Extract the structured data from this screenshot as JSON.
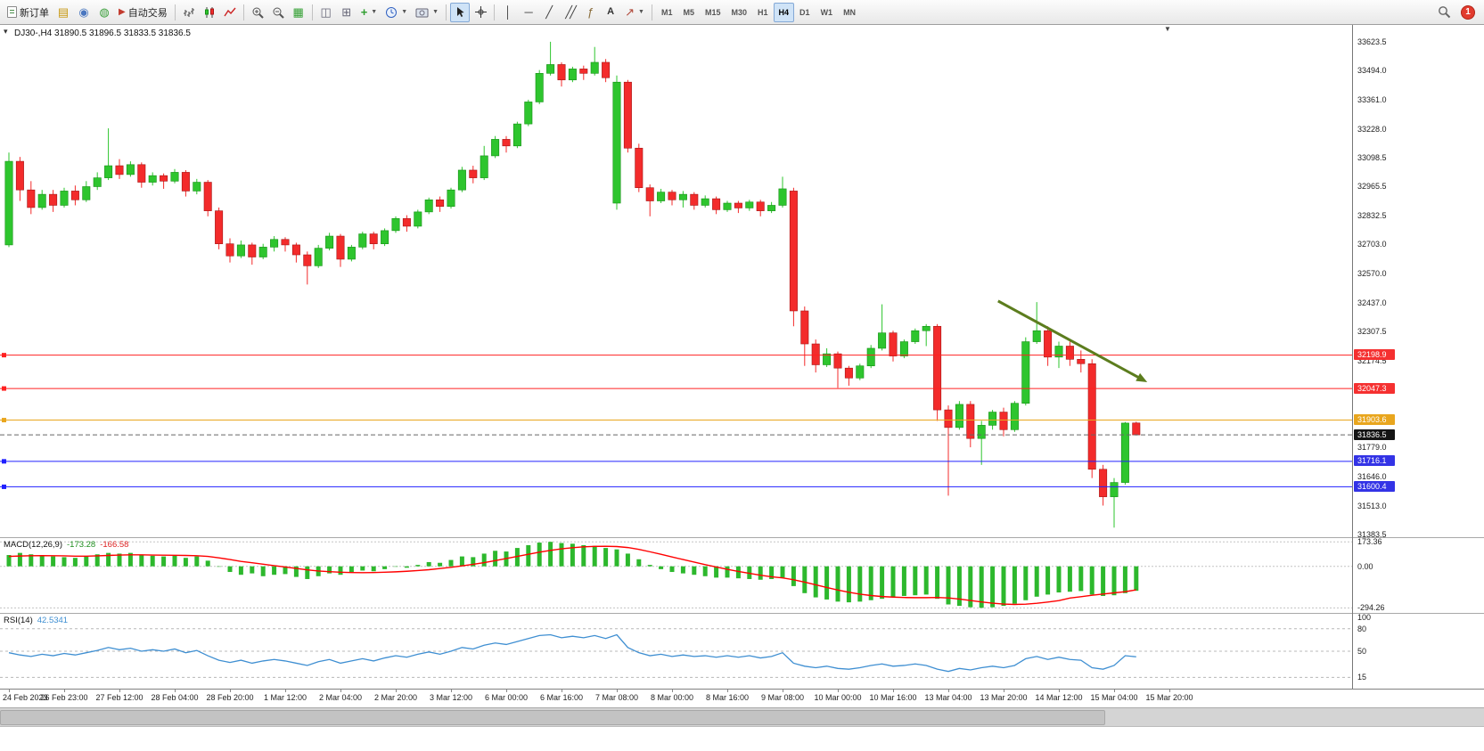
{
  "toolbar": {
    "new_order_label": "新订单",
    "algo_trading_label": "自动交易",
    "text_tool_label": "A",
    "timeframes": [
      "M1",
      "M5",
      "M15",
      "M30",
      "H1",
      "H4",
      "D1",
      "W1",
      "MN"
    ],
    "active_timeframe": "H4",
    "notification_count": "1"
  },
  "chart": {
    "info_label": "DJ30-,H4 31890.5 31896.5 31833.5 31836.5"
  },
  "macd": {
    "title": "MACD(12,26,9)",
    "value_main": "-173.28",
    "value_signal": "-166.58"
  },
  "rsi": {
    "title": "RSI(14)",
    "value": "42.5341"
  },
  "chart_data": {
    "type": "candlestick",
    "symbol": "DJ30-",
    "period": "H4",
    "current_ohlc": {
      "open": 31890.5,
      "high": 31896.5,
      "low": 31833.5,
      "close": 31836.5
    },
    "colors": {
      "bull": "#2ec52e",
      "bull_edge": "#159015",
      "bear": "#f32b2b",
      "bear_edge": "#a51515",
      "macd_hist": "#2db82d",
      "macd_signal": "#ff0000",
      "rsi_line": "#3f8fd2",
      "arrow": "#5c7d1e",
      "badge_red": "#f53030",
      "badge_orange": "#e9a61e",
      "badge_blue": "#3333e6",
      "badge_black": "#141414"
    },
    "price_ticks": [
      33623.5,
      33494.0,
      33361.0,
      33228.0,
      33098.5,
      32965.5,
      32832.5,
      32703.0,
      32570.0,
      32437.0,
      32307.5,
      32174.5,
      31779.0,
      31646.0,
      31513.0,
      31383.5
    ],
    "price_badges": [
      {
        "value": 32198.9,
        "color": "#f53030"
      },
      {
        "value": 32047.3,
        "color": "#f53030"
      },
      {
        "value": 31903.6,
        "color": "#e9a61e"
      },
      {
        "value": 31836.5,
        "color": "#141414"
      },
      {
        "value": 31716.1,
        "color": "#3333e6"
      },
      {
        "value": 31600.4,
        "color": "#3333e6"
      }
    ],
    "hlines": [
      {
        "value": 32198.9,
        "color": "#ff2020",
        "style": "solid"
      },
      {
        "value": 32047.3,
        "color": "#ff2020",
        "style": "solid"
      },
      {
        "value": 31903.6,
        "color": "#e9a61e",
        "style": "solid"
      },
      {
        "value": 31716.1,
        "color": "#2020ff",
        "style": "solid"
      },
      {
        "value": 31600.4,
        "color": "#2020ff",
        "style": "solid"
      },
      {
        "value": 31836.5,
        "color": "#666666",
        "style": "dash"
      }
    ],
    "trend_arrow": {
      "from_bar": 89.5,
      "from_price": 32445,
      "to_bar": 103,
      "to_price": 32076,
      "color": "#5c7d1e"
    },
    "candles": [
      [
        32700,
        33120,
        32690,
        33080
      ],
      [
        33080,
        33100,
        32900,
        32950
      ],
      [
        32950,
        32990,
        32840,
        32870
      ],
      [
        32870,
        32950,
        32860,
        32930
      ],
      [
        32930,
        32950,
        32850,
        32880
      ],
      [
        32880,
        32960,
        32870,
        32945
      ],
      [
        32945,
        32970,
        32880,
        32905
      ],
      [
        32905,
        32990,
        32895,
        32965
      ],
      [
        32965,
        33030,
        32950,
        33005
      ],
      [
        33005,
        33230,
        32995,
        33060
      ],
      [
        33060,
        33090,
        33000,
        33020
      ],
      [
        33020,
        33080,
        33010,
        33065
      ],
      [
        33065,
        33075,
        32960,
        32985
      ],
      [
        32985,
        33030,
        32970,
        33015
      ],
      [
        33015,
        33025,
        32955,
        32990
      ],
      [
        32990,
        33045,
        32980,
        33030
      ],
      [
        33030,
        33040,
        32920,
        32945
      ],
      [
        32945,
        33000,
        32930,
        32985
      ],
      [
        32985,
        32995,
        32830,
        32855
      ],
      [
        32855,
        32870,
        32680,
        32705
      ],
      [
        32705,
        32730,
        32620,
        32650
      ],
      [
        32650,
        32720,
        32640,
        32700
      ],
      [
        32700,
        32710,
        32610,
        32645
      ],
      [
        32645,
        32705,
        32635,
        32690
      ],
      [
        32690,
        32740,
        32670,
        32725
      ],
      [
        32725,
        32735,
        32670,
        32700
      ],
      [
        32700,
        32710,
        32620,
        32655
      ],
      [
        32655,
        32670,
        32520,
        32605
      ],
      [
        32605,
        32700,
        32595,
        32685
      ],
      [
        32685,
        32755,
        32675,
        32740
      ],
      [
        32740,
        32750,
        32600,
        32635
      ],
      [
        32635,
        32700,
        32625,
        32690
      ],
      [
        32690,
        32760,
        32680,
        32750
      ],
      [
        32750,
        32760,
        32680,
        32705
      ],
      [
        32705,
        32775,
        32695,
        32765
      ],
      [
        32765,
        32830,
        32755,
        32820
      ],
      [
        32820,
        32835,
        32760,
        32785
      ],
      [
        32785,
        32860,
        32775,
        32850
      ],
      [
        32850,
        32915,
        32840,
        32905
      ],
      [
        32905,
        32920,
        32850,
        32875
      ],
      [
        32875,
        32960,
        32865,
        32950
      ],
      [
        32950,
        33055,
        32940,
        33040
      ],
      [
        33040,
        33060,
        32980,
        33005
      ],
      [
        33005,
        33150,
        32995,
        33105
      ],
      [
        33105,
        33195,
        33095,
        33180
      ],
      [
        33180,
        33195,
        33120,
        33150
      ],
      [
        33150,
        33260,
        33140,
        33250
      ],
      [
        33250,
        33360,
        33240,
        33350
      ],
      [
        33350,
        33495,
        33340,
        33480
      ],
      [
        33480,
        33623.5,
        33470,
        33520
      ],
      [
        33520,
        33530,
        33420,
        33450
      ],
      [
        33450,
        33510,
        33440,
        33500
      ],
      [
        33500,
        33515,
        33450,
        33480
      ],
      [
        33480,
        33600,
        33470,
        33530
      ],
      [
        33530,
        33545,
        33440,
        33460
      ],
      [
        32890,
        33470,
        32860,
        33440
      ],
      [
        33440,
        33450,
        33120,
        33140
      ],
      [
        33140,
        33160,
        32940,
        32960
      ],
      [
        32960,
        32975,
        32830,
        32900
      ],
      [
        32900,
        32955,
        32890,
        32940
      ],
      [
        32940,
        32950,
        32880,
        32905
      ],
      [
        32905,
        32945,
        32870,
        32930
      ],
      [
        32930,
        32940,
        32860,
        32880
      ],
      [
        32880,
        32925,
        32870,
        32910
      ],
      [
        32910,
        32920,
        32840,
        32860
      ],
      [
        32860,
        32900,
        32850,
        32890
      ],
      [
        32890,
        32900,
        32845,
        32868
      ],
      [
        32868,
        32905,
        32855,
        32895
      ],
      [
        32895,
        32905,
        32830,
        32855
      ],
      [
        32855,
        32895,
        32845,
        32880
      ],
      [
        32880,
        33010,
        32870,
        32955
      ],
      [
        32945,
        32960,
        32330,
        32400
      ],
      [
        32400,
        32420,
        32150,
        32250
      ],
      [
        32250,
        32270,
        32120,
        32155
      ],
      [
        32155,
        32230,
        32145,
        32205
      ],
      [
        32205,
        32215,
        32050,
        32140
      ],
      [
        32140,
        32150,
        32060,
        32095
      ],
      [
        32095,
        32160,
        32085,
        32150
      ],
      [
        32150,
        32245,
        32140,
        32230
      ],
      [
        32230,
        32430,
        32220,
        32300
      ],
      [
        32300,
        32310,
        32170,
        32195
      ],
      [
        32195,
        32270,
        32185,
        32260
      ],
      [
        32260,
        32320,
        32250,
        32310
      ],
      [
        32310,
        32340,
        32240,
        32330
      ],
      [
        32330,
        32340,
        31900,
        31950
      ],
      [
        31950,
        31970,
        31560,
        31870
      ],
      [
        31870,
        31990,
        31860,
        31975
      ],
      [
        31975,
        31990,
        31780,
        31820
      ],
      [
        31820,
        31900,
        31700,
        31880
      ],
      [
        31880,
        31950,
        31860,
        31940
      ],
      [
        31940,
        31960,
        31830,
        31860
      ],
      [
        31860,
        31990,
        31850,
        31980
      ],
      [
        31980,
        32280,
        31970,
        32260
      ],
      [
        32260,
        32440,
        32250,
        32310
      ],
      [
        32310,
        32330,
        32150,
        32190
      ],
      [
        32190,
        32260,
        32140,
        32240
      ],
      [
        32240,
        32260,
        32150,
        32180
      ],
      [
        32180,
        32220,
        32120,
        32160
      ],
      [
        32160,
        32180,
        31640,
        31680
      ],
      [
        31680,
        31700,
        31515,
        31555
      ],
      [
        31555,
        31640,
        31415,
        31620
      ],
      [
        31620,
        31895,
        31610,
        31890
      ],
      [
        31890.5,
        31896.5,
        31833.5,
        31836.5
      ]
    ],
    "macd": {
      "histogram": [
        80,
        95,
        85,
        75,
        70,
        65,
        60,
        70,
        85,
        95,
        90,
        95,
        80,
        75,
        70,
        75,
        60,
        70,
        40,
        0,
        -40,
        -60,
        -50,
        -70,
        -60,
        -55,
        -75,
        -90,
        -70,
        -50,
        -60,
        -45,
        -30,
        -35,
        -20,
        0,
        -10,
        10,
        30,
        25,
        45,
        70,
        65,
        90,
        110,
        105,
        130,
        150,
        168,
        173.36,
        165,
        160,
        150,
        145,
        130,
        120,
        90,
        50,
        10,
        -20,
        -40,
        -50,
        -60,
        -70,
        -80,
        -80,
        -85,
        -90,
        -95,
        -90,
        -80,
        -140,
        -190,
        -220,
        -235,
        -250,
        -255,
        -250,
        -240,
        -230,
        -220,
        -210,
        -205,
        -200,
        -230,
        -270,
        -280,
        -290,
        -294.26,
        -290,
        -280,
        -265,
        -240,
        -215,
        -200,
        -185,
        -180,
        -175,
        -200,
        -210,
        -205,
        -190,
        -173.28
      ],
      "signal": [
        70,
        73,
        75,
        76,
        75,
        74,
        72,
        72,
        74,
        77,
        80,
        81,
        81,
        80,
        79,
        78,
        77,
        75,
        70,
        60,
        48,
        35,
        25,
        15,
        5,
        -5,
        -15,
        -25,
        -33,
        -38,
        -42,
        -44,
        -45,
        -44,
        -42,
        -39,
        -35,
        -30,
        -24,
        -16,
        -7,
        3,
        14,
        26,
        40,
        55,
        70,
        85,
        100,
        113,
        124,
        132,
        138,
        141,
        142,
        140,
        133,
        120,
        103,
        85,
        66,
        48,
        30,
        12,
        -5,
        -21,
        -36,
        -50,
        -63,
        -74,
        -82,
        -95,
        -112,
        -131,
        -150,
        -168,
        -184,
        -197,
        -207,
        -214,
        -218,
        -221,
        -222,
        -222,
        -221,
        -224,
        -232,
        -242,
        -252,
        -261,
        -267,
        -270,
        -268,
        -262,
        -253,
        -243,
        -225,
        -215,
        -205,
        -196,
        -188,
        -180,
        -166.58
      ],
      "axis": [
        {
          "value": 173.36,
          "label": "173.36"
        },
        {
          "value": 0,
          "label": "0.00"
        },
        {
          "value": -294.26,
          "label": "-294.26"
        }
      ]
    },
    "rsi": {
      "series": [
        48,
        45,
        43,
        46,
        44,
        47,
        45,
        48,
        51,
        55,
        52,
        54,
        50,
        52,
        50,
        53,
        48,
        51,
        44,
        38,
        35,
        38,
        34,
        37,
        39,
        37,
        34,
        31,
        36,
        39,
        34,
        37,
        40,
        37,
        41,
        44,
        42,
        46,
        49,
        46,
        50,
        55,
        53,
        58,
        61,
        59,
        63,
        67,
        71,
        72,
        68,
        70,
        68,
        71,
        67,
        72,
        55,
        48,
        44,
        46,
        43,
        45,
        43,
        44,
        42,
        44,
        42,
        44,
        41,
        43,
        48,
        34,
        30,
        28,
        30,
        27,
        26,
        28,
        31,
        33,
        30,
        31,
        33,
        31,
        26,
        23,
        27,
        25,
        28,
        30,
        28,
        31,
        40,
        43,
        39,
        42,
        39,
        38,
        28,
        26,
        31,
        44,
        42.53
      ],
      "top_label": "100",
      "levels": [
        {
          "value": 80,
          "label": "80"
        },
        {
          "value": 50,
          "label": "50"
        },
        {
          "value": 15,
          "label": "15"
        }
      ]
    },
    "time_labels": [
      "24 Feb 2023",
      "26 Feb 23:00",
      "27 Feb 12:00",
      "28 Feb 04:00",
      "28 Feb 20:00",
      "1 Mar 12:00",
      "2 Mar 04:00",
      "2 Mar 20:00",
      "3 Mar 12:00",
      "6 Mar 00:00",
      "6 Mar 16:00",
      "7 Mar 08:00",
      "8 Mar 00:00",
      "8 Mar 16:00",
      "9 Mar 08:00",
      "10 Mar 00:00",
      "10 Mar 16:00",
      "13 Mar 04:00",
      "13 Mar 20:00",
      "14 Mar 12:00",
      "15 Mar 04:00",
      "15 Mar 20:00"
    ],
    "label_step_bars": 5
  }
}
